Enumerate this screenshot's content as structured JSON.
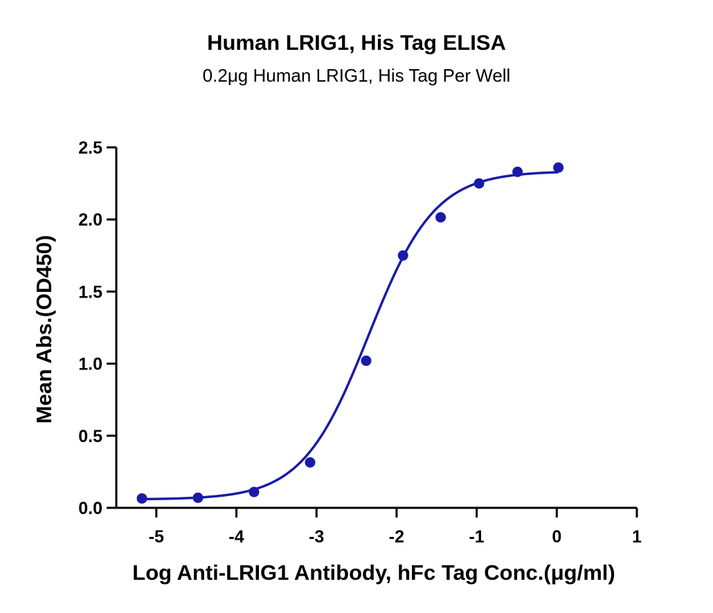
{
  "chart_data": {
    "type": "scatter",
    "title": "Human LRIG1, His Tag ELISA",
    "subtitle": "0.2μg Human LRIG1, His Tag Per Well",
    "xlabel": "Log Anti-LRIG1 Antibody, hFc Tag Conc.(μg/ml)",
    "ylabel": "Mean Abs.(OD450)",
    "xlim": [
      -5.5,
      1
    ],
    "ylim": [
      0,
      2.5
    ],
    "xticks": [
      -5,
      -4,
      -3,
      -2,
      -1,
      0,
      1
    ],
    "yticks": [
      0.0,
      0.5,
      1.0,
      1.5,
      2.0,
      2.5
    ],
    "xtick_labels": [
      "-5",
      "-4",
      "-3",
      "-2",
      "-1",
      "0",
      "1"
    ],
    "ytick_labels": [
      "0.0",
      "0.5",
      "1.0",
      "1.5",
      "2.0",
      "2.5"
    ],
    "grid": false,
    "legend": "none",
    "series": [
      {
        "x": [
          -5.18,
          -4.48,
          -3.78,
          -3.08,
          -2.38,
          -1.92,
          -1.45,
          -0.97,
          -0.49,
          0.02
        ],
        "y": [
          0.065,
          0.07,
          0.11,
          0.315,
          1.02,
          1.75,
          2.015,
          2.25,
          2.33,
          2.36
        ],
        "color": "#1a1aa8",
        "fit": {
          "model": "4PL",
          "bottom": 0.058,
          "top": 2.335,
          "logEC50": -2.35,
          "hill": 1.05
        }
      }
    ]
  }
}
